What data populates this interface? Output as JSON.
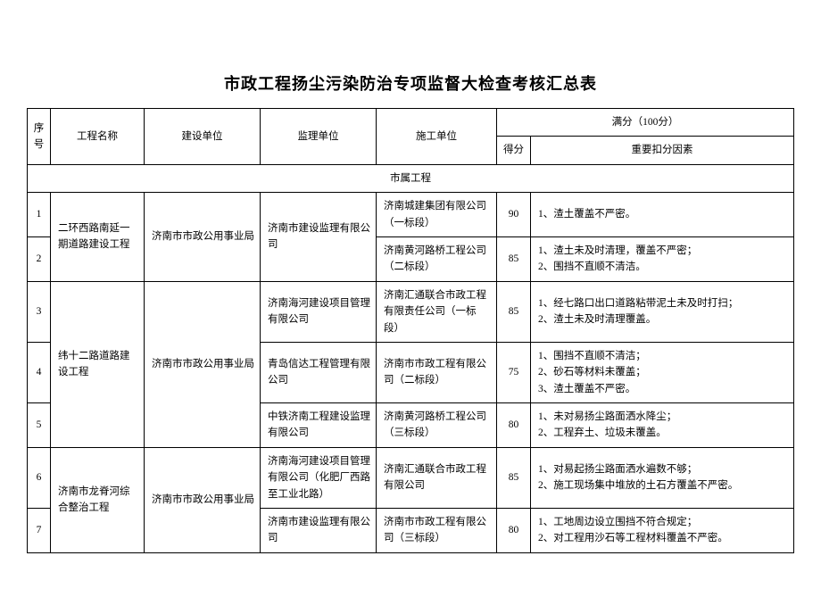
{
  "title": "市政工程扬尘污染防治专项监督大检查考核汇总表",
  "header": {
    "index": "序号",
    "project": "工程名称",
    "builder": "建设单位",
    "supervisor": "监理单位",
    "contractor": "施工单位",
    "full_score": "满分（100分）",
    "score": "得分",
    "deductions": "重要扣分因素"
  },
  "section_label": "市属工程",
  "groups": [
    {
      "project": "二环西路南延一期道路建设工程",
      "builder": "济南市市政公用事业局",
      "rows": [
        {
          "idx": "1",
          "supervisor": "济南市建设监理有限公司",
          "supervisor_rowspan": 2,
          "contractor": "济南城建集团有限公司（一标段）",
          "score": "90",
          "deductions": "1、渣土覆盖不严密。"
        },
        {
          "idx": "2",
          "contractor": "济南黄河路桥工程公司（二标段）",
          "score": "85",
          "deductions": "1、渣土未及时清理，覆盖不严密；\n2、围挡不直顺不清洁。"
        }
      ]
    },
    {
      "project": "纬十二路道路建设工程",
      "builder": "济南市市政公用事业局",
      "rows": [
        {
          "idx": "3",
          "supervisor": "济南海河建设项目管理有限公司",
          "contractor": "济南汇通联合市政工程有限责任公司（一标段）",
          "score": "85",
          "deductions": "1、经七路口出口道路粘带泥土未及时打扫；\n2、渣土未及时清理覆盖。"
        },
        {
          "idx": "4",
          "supervisor": "青岛信达工程管理有限公司",
          "contractor": "济南市市政工程有限公司（二标段）",
          "score": "75",
          "deductions": "1、围挡不直顺不清洁；\n2、砂石等材料未覆盖；\n3、渣土覆盖不严密。"
        },
        {
          "idx": "5",
          "supervisor": "中铁济南工程建设监理有限公司",
          "contractor": "济南黄河路桥工程公司（三标段）",
          "score": "80",
          "deductions": "1、未对易扬尘路面洒水降尘；\n2、工程弃土、垃圾未覆盖。"
        }
      ]
    },
    {
      "project": "济南市龙脊河综合整治工程",
      "builder": "济南市市政公用事业局",
      "rows": [
        {
          "idx": "6",
          "supervisor": "济南海河建设项目管理有限公司（化肥厂西路至工业北路）",
          "contractor": "济南汇通联合市政工程有限公司",
          "score": "85",
          "deductions": "1、对易起扬尘路面洒水遍数不够；\n2、施工现场集中堆放的土石方覆盖不严密。"
        },
        {
          "idx": "7",
          "supervisor": "济南市建设监理有限公司",
          "contractor": "济南市市政工程有限公司（三标段）",
          "score": "80",
          "deductions": "1、工地周边设立围挡不符合规定；\n2、对工程用沙石等工程材料覆盖不严密。"
        }
      ]
    }
  ]
}
